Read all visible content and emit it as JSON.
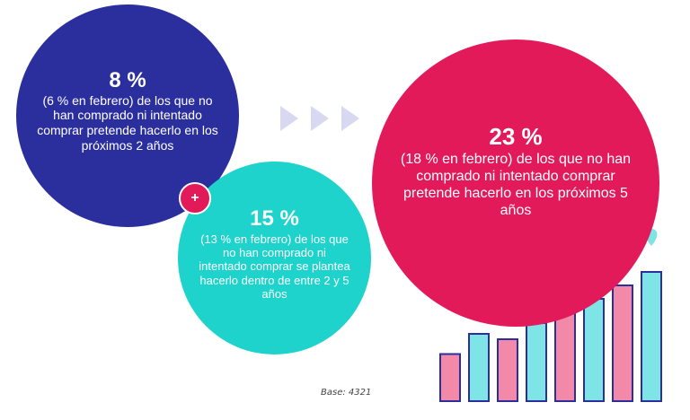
{
  "stat_blue": {
    "percent": "8 %",
    "text": "(6 % en febrero) de los que no han comprado ni intentado comprar pretende hacerlo en los próximos 2 años"
  },
  "stat_teal": {
    "percent": "15 %",
    "text": "(13 % en febrero) de los que no han comprado ni intentado comprar se plantea hacerlo dentro de entre  2 y 5 años"
  },
  "stat_pink": {
    "percent": "23 %",
    "text": "(18 % en febrero) de los que no han comprado ni intentado comprar pretende hacerlo en los próximos 5 años"
  },
  "plus_symbol": "+",
  "base_note": "Base: 4321",
  "colors": {
    "blue": "#2b2f9e",
    "teal": "#1ed3cc",
    "pink": "#e21a5a",
    "bar_pink": "#f389a8",
    "bar_teal": "#7fe4e6",
    "chevron": "#d8d9f0"
  },
  "decor_chart": {
    "bar_levels": [
      0.35,
      0.5,
      0.46,
      0.58,
      0.79,
      0.76,
      0.86,
      0.96
    ],
    "line_levels": [
      0.44,
      0.57,
      0.54,
      0.61,
      0.77,
      0.74,
      0.9,
      1.0
    ]
  }
}
